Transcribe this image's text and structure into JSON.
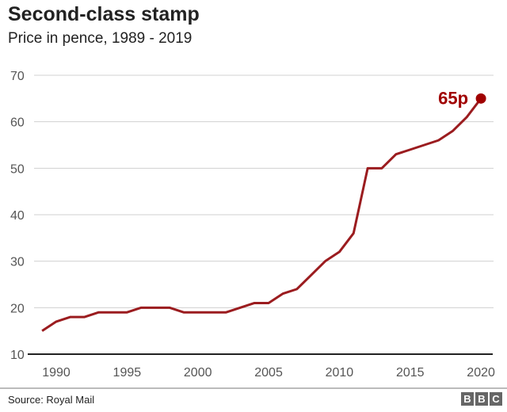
{
  "chart_data": {
    "type": "line",
    "title": "Second-class stamp",
    "subtitle": "Price in pence, 1989 - 2019",
    "xlabel": "",
    "ylabel": "",
    "ylim": [
      10,
      70
    ],
    "yticks": [
      "10",
      "20",
      "30",
      "40",
      "50",
      "60",
      "70"
    ],
    "xticks": [
      "1990",
      "1995",
      "2000",
      "2005",
      "2010",
      "2015",
      "2020"
    ],
    "grid": true,
    "x": [
      1989,
      1990,
      1991,
      1992,
      1993,
      1994,
      1995,
      1996,
      1997,
      1998,
      1999,
      2000,
      2001,
      2002,
      2003,
      2004,
      2005,
      2006,
      2007,
      2008,
      2009,
      2010,
      2011,
      2012,
      2013,
      2014,
      2015,
      2016,
      2017,
      2018,
      2019,
      2020
    ],
    "values": [
      15,
      17,
      18,
      18,
      19,
      19,
      19,
      20,
      20,
      20,
      19,
      19,
      19,
      19,
      20,
      21,
      21,
      23,
      24,
      27,
      30,
      32,
      36,
      50,
      50,
      53,
      54,
      55,
      56,
      58,
      61,
      65
    ],
    "annotation": "65p",
    "line_color": "#9b1c1f",
    "annotation_color": "#a00000"
  },
  "footer": {
    "source": "Source: Royal Mail",
    "logo": [
      "B",
      "B",
      "C"
    ]
  }
}
